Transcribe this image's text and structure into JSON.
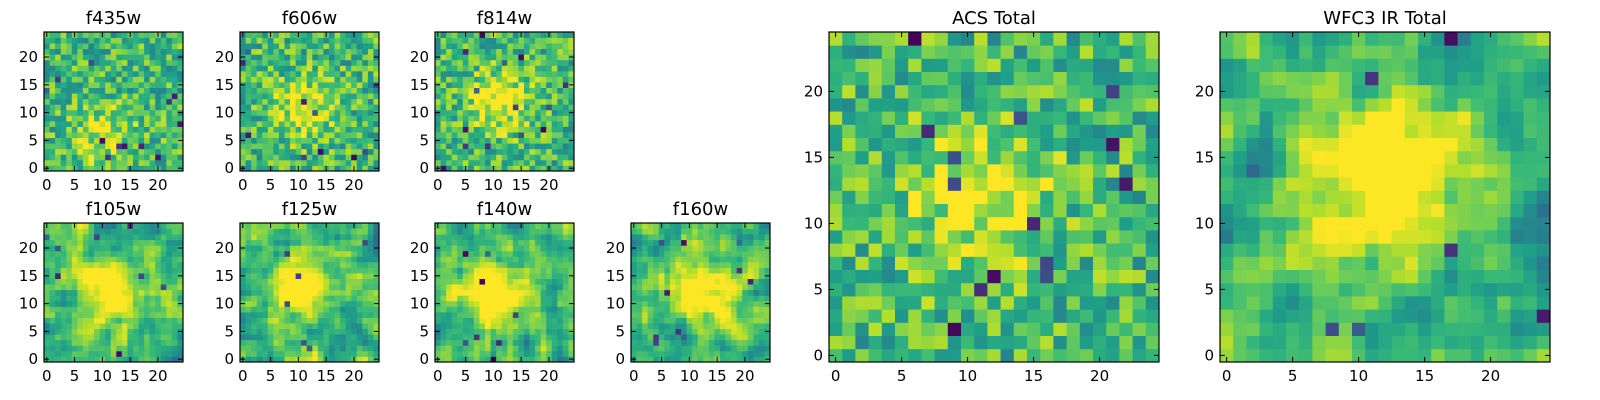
{
  "chart_data": [
    {
      "type": "heatmap",
      "title": "f435w",
      "panel": "acs-small",
      "xlim": [
        -0.5,
        24.5
      ],
      "ylim": [
        -0.5,
        24.5
      ],
      "xticks": [
        0,
        5,
        10,
        15,
        20
      ],
      "yticks": [
        0,
        5,
        10,
        15,
        20
      ],
      "colormap": "viridis",
      "peak": [
        10,
        6
      ],
      "peak_strength": 0.25,
      "dead_pixels": 12,
      "seed": 11
    },
    {
      "type": "heatmap",
      "title": "f606w",
      "panel": "acs-small",
      "xlim": [
        -0.5,
        24.5
      ],
      "ylim": [
        -0.5,
        24.5
      ],
      "xticks": [
        0,
        5,
        10,
        15,
        20
      ],
      "yticks": [
        0,
        5,
        10,
        15,
        20
      ],
      "colormap": "viridis",
      "peak": [
        11,
        11
      ],
      "peak_strength": 0.3,
      "dead_pixels": 10,
      "seed": 23
    },
    {
      "type": "heatmap",
      "title": "f814w",
      "panel": "acs-small",
      "xlim": [
        -0.5,
        24.5
      ],
      "ylim": [
        -0.5,
        24.5
      ],
      "xticks": [
        0,
        5,
        10,
        15,
        20
      ],
      "yticks": [
        0,
        5,
        10,
        15,
        20
      ],
      "colormap": "viridis",
      "peak": [
        11,
        12
      ],
      "peak_strength": 0.35,
      "dead_pixels": 14,
      "seed": 37
    },
    {
      "type": "heatmap",
      "title": "f105w",
      "panel": "ir-small",
      "xlim": [
        -0.5,
        24.5
      ],
      "ylim": [
        -0.5,
        24.5
      ],
      "xticks": [
        0,
        5,
        10,
        15,
        20
      ],
      "yticks": [
        0,
        5,
        10,
        15,
        20
      ],
      "colormap": "viridis",
      "peak": [
        12,
        12
      ],
      "peak_strength": 0.45,
      "dead_pixels": 8,
      "seed": 41
    },
    {
      "type": "heatmap",
      "title": "f125w",
      "panel": "ir-small",
      "xlim": [
        -0.5,
        24.5
      ],
      "ylim": [
        -0.5,
        24.5
      ],
      "xticks": [
        0,
        5,
        10,
        15,
        20
      ],
      "yticks": [
        0,
        5,
        10,
        15,
        20
      ],
      "colormap": "viridis",
      "peak": [
        10,
        13
      ],
      "peak_strength": 0.45,
      "dead_pixels": 6,
      "seed": 53
    },
    {
      "type": "heatmap",
      "title": "f140w",
      "panel": "ir-small",
      "xlim": [
        -0.5,
        24.5
      ],
      "ylim": [
        -0.5,
        24.5
      ],
      "xticks": [
        0,
        5,
        10,
        15,
        20
      ],
      "yticks": [
        0,
        5,
        10,
        15,
        20
      ],
      "colormap": "viridis",
      "peak": [
        10,
        12
      ],
      "peak_strength": 0.5,
      "dead_pixels": 8,
      "seed": 67
    },
    {
      "type": "heatmap",
      "title": "f160w",
      "panel": "ir-small",
      "xlim": [
        -0.5,
        24.5
      ],
      "ylim": [
        -0.5,
        24.5
      ],
      "xticks": [
        0,
        5,
        10,
        15,
        20
      ],
      "yticks": [
        0,
        5,
        10,
        15,
        20
      ],
      "colormap": "viridis",
      "peak": [
        12,
        12
      ],
      "peak_strength": 0.5,
      "dead_pixels": 10,
      "seed": 79
    },
    {
      "type": "heatmap",
      "title": "ACS Total",
      "panel": "acs-large",
      "xlim": [
        -0.5,
        24.5
      ],
      "ylim": [
        -0.5,
        24.5
      ],
      "xticks": [
        0,
        5,
        10,
        15,
        20
      ],
      "yticks": [
        0,
        5,
        10,
        15,
        20
      ],
      "colormap": "viridis",
      "peak": [
        11,
        12
      ],
      "peak_strength": 0.3,
      "dead_pixels": 14,
      "seed": 97
    },
    {
      "type": "heatmap",
      "title": "WFC3 IR Total",
      "panel": "ir-large",
      "xlim": [
        -0.5,
        24.5
      ],
      "ylim": [
        -0.5,
        24.5
      ],
      "xticks": [
        0,
        5,
        10,
        15,
        20
      ],
      "yticks": [
        0,
        5,
        10,
        15,
        20
      ],
      "colormap": "viridis",
      "peak": [
        12,
        13
      ],
      "peak_strength": 0.55,
      "dead_pixels": 8,
      "seed": 113
    }
  ]
}
